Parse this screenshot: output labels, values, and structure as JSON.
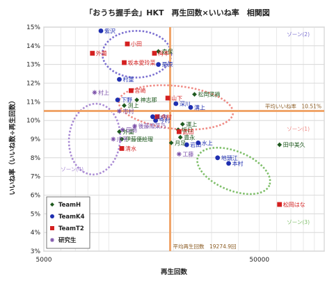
{
  "chart_data": {
    "type": "scatter",
    "title": "「おうち握手会」HKT　再生回数×いいね率　相関図",
    "xlabel": "再生回数",
    "ylabel": "いいね率（いいね数÷再生回数）",
    "xscale": "log",
    "xlim": [
      5000,
      100000
    ],
    "ylim": [
      3,
      15
    ],
    "x_ticks": [
      5000,
      50000
    ],
    "x_tick_labels": [
      "5000",
      "50000"
    ],
    "y_ticks": [
      3,
      4,
      5,
      6,
      7,
      8,
      9,
      10,
      11,
      12,
      13,
      14,
      15
    ],
    "y_tick_labels": [
      "3%",
      "4%",
      "5%",
      "6%",
      "7%",
      "8%",
      "9%",
      "10%",
      "11%",
      "12%",
      "13%",
      "14%",
      "15%"
    ],
    "grid": true,
    "legend_position": "bottom-left",
    "reference_lines": [
      {
        "axis": "y",
        "value": 10.51,
        "label": "平均いいね率　10.51%"
      },
      {
        "axis": "x",
        "value": 19274.9,
        "label": "平均再生回数　19274.9回"
      }
    ],
    "groups": [
      {
        "label": "ゾーン(2)",
        "color": "#7b6fd0"
      },
      {
        "label": "ゾーン(1)",
        "color": "#ef8a84"
      },
      {
        "label": "ゾーン(3)",
        "color": "#7fbf6a"
      },
      {
        "label": "ゾーン(4)",
        "color": "#a98ad4"
      }
    ],
    "series": [
      {
        "name": "TeamH",
        "marker": "diamond",
        "color": "#1f5a1f",
        "label_color": "#1f5a1f",
        "points": [
          {
            "label": "田中美久",
            "x": 62000,
            "y": 8.7
          },
          {
            "label": "森保",
            "x": 17000,
            "y": 13.7
          },
          {
            "label": "松岡菜摘",
            "x": 25000,
            "y": 11.4
          },
          {
            "label": "神志那",
            "x": 13500,
            "y": 11.1
          },
          {
            "label": "渕上",
            "x": 11800,
            "y": 10.8
          },
          {
            "label": "坂口",
            "x": 21000,
            "y": 9.5
          },
          {
            "label": "運上",
            "x": 22000,
            "y": 9.8
          },
          {
            "label": "豊永",
            "x": 21500,
            "y": 9.1
          },
          {
            "label": "外薗",
            "x": 11200,
            "y": 9.4
          },
          {
            "label": "伊藤優絵瑠",
            "x": 11500,
            "y": 9.0
          },
          {
            "label": "月足",
            "x": 19500,
            "y": 8.8
          }
        ]
      },
      {
        "name": "TeamK4",
        "marker": "circle",
        "color": "#1f2fb0",
        "label_color": "#1f2fb0",
        "points": [
          {
            "label": "紫沢",
            "x": 9200,
            "y": 14.8
          },
          {
            "label": "栗原",
            "x": 17000,
            "y": 13.0
          },
          {
            "label": "村重",
            "x": 11200,
            "y": 12.2
          },
          {
            "label": "下野",
            "x": 11000,
            "y": 11.1
          },
          {
            "label": "深川",
            "x": 20500,
            "y": 10.9
          },
          {
            "label": "溝上",
            "x": 24000,
            "y": 10.7
          },
          {
            "label": "今村",
            "x": 16500,
            "y": 10.0
          },
          {
            "label": "本村",
            "x": 36000,
            "y": 7.7
          },
          {
            "label": "地頭江",
            "x": 32000,
            "y": 8.0
          },
          {
            "label": "山内",
            "x": 16000,
            "y": 10.2
          },
          {
            "label": "水上",
            "x": 26000,
            "y": 8.8
          },
          {
            "label": "岩田",
            "x": 23000,
            "y": 8.7
          }
        ]
      },
      {
        "name": "TeamT2",
        "marker": "square",
        "color": "#d42020",
        "label_color": "#d42020",
        "points": [
          {
            "label": "小田",
            "x": 12200,
            "y": 14.1
          },
          {
            "label": "外薗",
            "x": 8400,
            "y": 13.6
          },
          {
            "label": "坂本愛玲菜",
            "x": 11800,
            "y": 13.1
          },
          {
            "label": "梅本",
            "x": 16300,
            "y": 13.6
          },
          {
            "label": "宮崎",
            "x": 12700,
            "y": 11.6
          },
          {
            "label": "山下",
            "x": 18800,
            "y": 11.2
          },
          {
            "label": "武田",
            "x": 21200,
            "y": 9.4
          },
          {
            "label": "今村",
            "x": 16800,
            "y": 10.2
          },
          {
            "label": "清水",
            "x": 11500,
            "y": 8.5
          },
          {
            "label": "松岡はな",
            "x": 62000,
            "y": 5.5
          }
        ]
      },
      {
        "name": "研究生",
        "marker": "asterisk",
        "color": "#7a4fa8",
        "label_color": "#7a4fa8",
        "points": [
          {
            "label": "村上",
            "x": 8600,
            "y": 11.5
          },
          {
            "label": "市村",
            "x": 11200,
            "y": 10.5
          },
          {
            "label": "後藤陽菜乃",
            "x": 13200,
            "y": 9.7
          },
          {
            "label": "田島",
            "x": 11600,
            "y": 9.5
          },
          {
            "label": "川平",
            "x": 10500,
            "y": 9.0
          },
          {
            "label": "工藤",
            "x": 21200,
            "y": 8.2
          }
        ]
      }
    ]
  }
}
